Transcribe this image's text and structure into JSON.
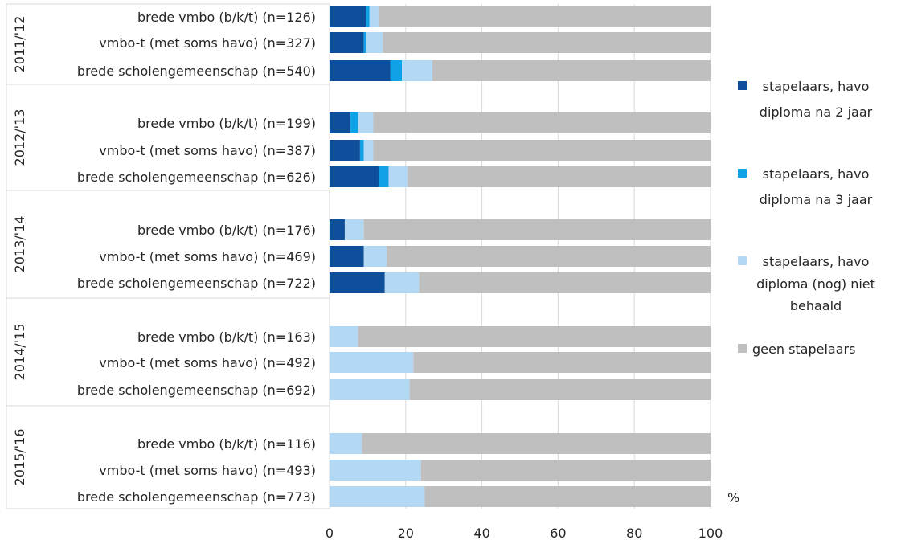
{
  "chart_data": {
    "type": "bar",
    "orientation": "horizontal",
    "stacked": true,
    "xlim": [
      0,
      100
    ],
    "xticks": [
      "0",
      "20",
      "40",
      "60",
      "80",
      "100"
    ],
    "unit_label": "%",
    "grid": true,
    "legend_position": "right",
    "groups": [
      {
        "label": "2011/'12",
        "categories": [
          "brede vmbo (b/k/t) (n=126)",
          "vmbo-t (met soms havo) (n=327)",
          "brede scholengemeenschap (n=540)"
        ]
      },
      {
        "label": "2012/'13",
        "categories": [
          "brede vmbo (b/k/t) (n=199)",
          "vmbo-t (met soms havo) (n=387)",
          "brede scholengemeenschap (n=626)"
        ]
      },
      {
        "label": "2013/'14",
        "categories": [
          "brede vmbo (b/k/t) (n=176)",
          "vmbo-t (met soms havo) (n=469)",
          "brede scholengemeenschap (n=722)"
        ]
      },
      {
        "label": "2014/'15",
        "categories": [
          "brede vmbo (b/k/t) (n=163)",
          "vmbo-t (met soms havo) (n=492)",
          "brede scholengemeenschap (n=692)"
        ]
      },
      {
        "label": "2015/'16",
        "categories": [
          "brede vmbo (b/k/t) (n=116)",
          "vmbo-t (met soms havo) (n=493)",
          "brede scholengemeenschap (n=773)"
        ]
      }
    ],
    "series": [
      {
        "name": "stapelaars, havo diploma na 2 jaar",
        "legend_lines": [
          "stapelaars, havo",
          "diploma na 2 jaar"
        ],
        "color": "#0d4f9b",
        "values": [
          [
            9.5,
            9.0,
            16.0
          ],
          [
            5.5,
            8.0,
            13.0
          ],
          [
            4.0,
            9.0,
            14.5
          ],
          [
            0,
            0,
            0
          ],
          [
            0,
            0,
            0
          ]
        ]
      },
      {
        "name": "stapelaars, havo diploma na 3 jaar",
        "legend_lines": [
          "stapelaars, havo",
          "diploma na 3 jaar"
        ],
        "color": "#0ea1e6",
        "values": [
          [
            1.0,
            0.5,
            3.0
          ],
          [
            2.0,
            1.0,
            2.5
          ],
          [
            0,
            0,
            0
          ],
          [
            0,
            0,
            0
          ],
          [
            0,
            0,
            0
          ]
        ]
      },
      {
        "name": "stapelaars, havo diploma (nog) niet behaald",
        "legend_lines": [
          "stapelaars, havo",
          "diploma (nog) niet",
          "behaald"
        ],
        "color": "#b3d8f3",
        "values": [
          [
            2.5,
            4.5,
            8.0
          ],
          [
            4.0,
            2.5,
            5.0
          ],
          [
            5.0,
            6.0,
            9.0
          ],
          [
            7.5,
            22.0,
            21.0
          ],
          [
            8.5,
            24.0,
            25.0
          ]
        ]
      },
      {
        "name": "geen stapelaars",
        "legend_lines": [
          "geen stapelaars"
        ],
        "color": "#bfbfbf",
        "values": [
          [
            87.0,
            86.0,
            73.0
          ],
          [
            88.5,
            88.5,
            79.5
          ],
          [
            91.0,
            85.0,
            76.5
          ],
          [
            92.5,
            78.0,
            79.0
          ],
          [
            91.5,
            76.0,
            75.0
          ]
        ]
      }
    ]
  }
}
